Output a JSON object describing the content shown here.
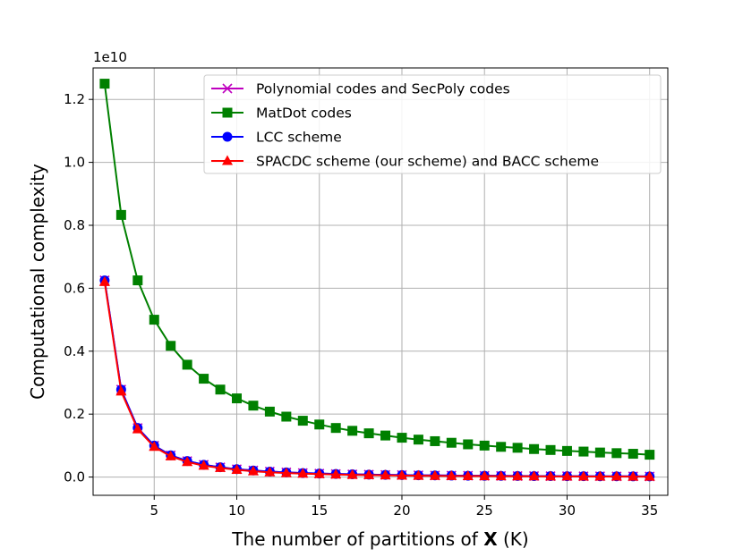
{
  "chart_data": {
    "type": "line",
    "title": "",
    "xlabel_prefix": "The number of partitions of ",
    "xlabel_bold": "X",
    "xlabel_suffix": " (K)",
    "ylabel": "Computational complexity",
    "y_offset_label": "1e10",
    "xlim": [
      1.3,
      36.1
    ],
    "ylim": [
      -0.058,
      1.3
    ],
    "x_ticks": [
      5,
      10,
      15,
      20,
      25,
      30,
      35
    ],
    "y_ticks": [
      0.0,
      0.2,
      0.4,
      0.6,
      0.8,
      1.0,
      1.2
    ],
    "y_tick_labels": [
      "0.0",
      "0.2",
      "0.4",
      "0.6",
      "0.8",
      "1.0",
      "1.2"
    ],
    "grid": true,
    "legend_position": "upper-right",
    "x": [
      2,
      3,
      4,
      5,
      6,
      7,
      8,
      9,
      10,
      11,
      12,
      13,
      14,
      15,
      16,
      17,
      18,
      19,
      20,
      21,
      22,
      23,
      24,
      25,
      26,
      27,
      28,
      29,
      30,
      31,
      32,
      33,
      34,
      35
    ],
    "series": [
      {
        "name": "Polynomial codes and SecPoly codes",
        "color": "#bf00bf",
        "marker": "x",
        "values": [
          0.625,
          0.278,
          0.156,
          0.1,
          0.069,
          0.051,
          0.039,
          0.031,
          0.025,
          0.021,
          0.0174,
          0.0148,
          0.0128,
          0.0111,
          0.0098,
          0.0087,
          0.0077,
          0.0069,
          0.0063,
          0.0057,
          0.0052,
          0.0047,
          0.0043,
          0.004,
          0.0037,
          0.0034,
          0.0032,
          0.003,
          0.0028,
          0.0026,
          0.0024,
          0.0023,
          0.0022,
          0.002
        ]
      },
      {
        "name": "MatDot codes",
        "color": "#008000",
        "marker": "square",
        "values": [
          1.25,
          0.833,
          0.625,
          0.5,
          0.417,
          0.357,
          0.3125,
          0.278,
          0.25,
          0.227,
          0.208,
          0.192,
          0.179,
          0.167,
          0.156,
          0.147,
          0.139,
          0.132,
          0.125,
          0.119,
          0.114,
          0.109,
          0.104,
          0.1,
          0.096,
          0.093,
          0.089,
          0.086,
          0.083,
          0.081,
          0.078,
          0.076,
          0.074,
          0.071
        ]
      },
      {
        "name": "LCC scheme",
        "color": "#0000ff",
        "marker": "circle",
        "values": [
          0.625,
          0.278,
          0.156,
          0.1,
          0.069,
          0.051,
          0.039,
          0.031,
          0.025,
          0.021,
          0.0174,
          0.0148,
          0.0128,
          0.0111,
          0.0098,
          0.0087,
          0.0077,
          0.0069,
          0.0063,
          0.0057,
          0.0052,
          0.0047,
          0.0043,
          0.004,
          0.0037,
          0.0034,
          0.0032,
          0.003,
          0.0028,
          0.0026,
          0.0024,
          0.0023,
          0.0022,
          0.002
        ]
      },
      {
        "name": "SPACDC scheme (our scheme) and BACC scheme",
        "color": "#ff0000",
        "marker": "triangle",
        "values": [
          0.62,
          0.272,
          0.152,
          0.096,
          0.066,
          0.048,
          0.036,
          0.029,
          0.023,
          0.0185,
          0.0153,
          0.0128,
          0.0108,
          0.0093,
          0.008,
          0.007,
          0.0062,
          0.0054,
          0.0048,
          0.0043,
          0.0039,
          0.0035,
          0.0032,
          0.0029,
          0.0026,
          0.0024,
          0.0022,
          0.002,
          0.0019,
          0.0017,
          0.0016,
          0.0015,
          0.0014,
          0.0013
        ]
      }
    ]
  }
}
